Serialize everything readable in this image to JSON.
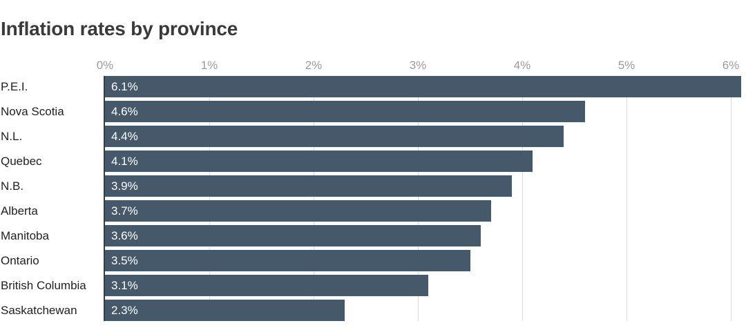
{
  "title": "Inflation rates by province",
  "chart_data": {
    "type": "bar",
    "orientation": "horizontal",
    "title": "Inflation rates by province",
    "categories": [
      "P.E.I.",
      "Nova Scotia",
      "N.L.",
      "Quebec",
      "N.B.",
      "Alberta",
      "Manitoba",
      "Ontario",
      "British Columbia",
      "Saskatchewan"
    ],
    "values": [
      6.1,
      4.6,
      4.4,
      4.1,
      3.9,
      3.7,
      3.6,
      3.5,
      3.1,
      2.3
    ],
    "value_labels": [
      "6.1%",
      "4.6%",
      "4.4%",
      "4.1%",
      "3.9%",
      "3.7%",
      "3.6%",
      "3.5%",
      "3.1%",
      "2.3%"
    ],
    "x_ticks": [
      0,
      1,
      2,
      3,
      4,
      5,
      6
    ],
    "x_tick_labels": [
      "0%",
      "1%",
      "2%",
      "3%",
      "4%",
      "5%",
      "6%"
    ],
    "xlim": [
      0,
      6.14
    ],
    "grid": true,
    "legend": false,
    "colors": {
      "bar": "#45596b",
      "gridline": "#dddddd",
      "axis_line": "#3c3c3c",
      "tick_label": "#9b9b9b",
      "category_label": "#1f1f1f",
      "value_label": "#ffffff",
      "title": "#3a3a3a",
      "background": "#ffffff"
    }
  }
}
